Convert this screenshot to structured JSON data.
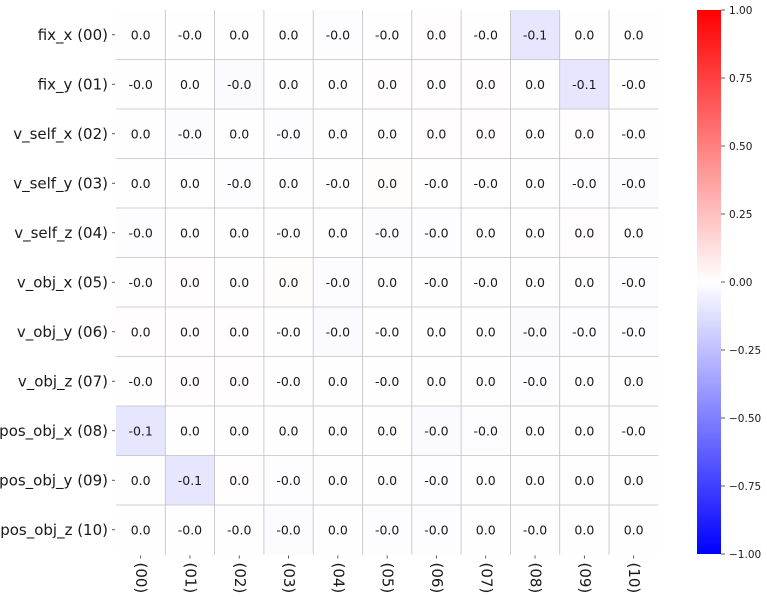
{
  "chart_data": {
    "type": "heatmap",
    "rows": [
      "fix_x (00)",
      "fix_y (01)",
      "v_self_x (02)",
      "v_self_y (03)",
      "v_self_z (04)",
      "v_obj_x (05)",
      "v_obj_y (06)",
      "v_obj_z (07)",
      "pos_obj_x (08)",
      "pos_obj_y (09)",
      "pos_obj_z (10)"
    ],
    "columns": [
      "(00)",
      "(01)",
      "(02)",
      "(03)",
      "(04)",
      "(05)",
      "(06)",
      "(07)",
      "(08)",
      "(09)",
      "(10)"
    ],
    "values": [
      [
        0.004,
        -0.005,
        0.003,
        0.004,
        -0.006,
        -0.003,
        0.007,
        -0.004,
        -0.1,
        0.005,
        0.004
      ],
      [
        -0.005,
        0.004,
        -0.015,
        0.003,
        0.004,
        0.008,
        0.006,
        0.009,
        0.004,
        -0.1,
        -0.004
      ],
      [
        0.003,
        -0.013,
        0.004,
        -0.006,
        0.003,
        0.005,
        0.006,
        0.008,
        0.005,
        0.009,
        -0.005
      ],
      [
        0.004,
        0.003,
        -0.006,
        0.004,
        -0.005,
        0.011,
        -0.004,
        -0.005,
        0.003,
        -0.006,
        -0.012
      ],
      [
        -0.006,
        0.004,
        0.003,
        -0.005,
        0.004,
        -0.012,
        -0.008,
        0.004,
        0.005,
        0.006,
        0.003
      ],
      [
        -0.003,
        0.008,
        0.005,
        0.011,
        -0.012,
        0.004,
        -0.005,
        -0.004,
        0.005,
        0.004,
        -0.006
      ],
      [
        0.007,
        0.006,
        0.006,
        -0.004,
        -0.016,
        -0.005,
        0.004,
        0.003,
        -0.016,
        -0.009,
        -0.007
      ],
      [
        -0.004,
        0.009,
        0.008,
        -0.005,
        0.004,
        -0.004,
        0.003,
        0.004,
        -0.007,
        0.004,
        0.003
      ],
      [
        -0.1,
        0.004,
        0.005,
        0.003,
        0.005,
        0.005,
        -0.016,
        -0.007,
        0.004,
        0.004,
        -0.005
      ],
      [
        0.005,
        -0.1,
        0.009,
        -0.006,
        0.004,
        0.004,
        -0.009,
        0.004,
        0.004,
        0.003,
        0.004
      ],
      [
        0.004,
        -0.004,
        -0.005,
        -0.012,
        0.003,
        -0.006,
        -0.007,
        0.003,
        -0.005,
        0.004,
        0.003
      ]
    ],
    "labels": [
      [
        "0.0",
        "-0.0",
        "0.0",
        "0.0",
        "-0.0",
        "-0.0",
        "0.0",
        "-0.0",
        "-0.1",
        "0.0",
        "0.0"
      ],
      [
        "-0.0",
        "0.0",
        "-0.0",
        "0.0",
        "0.0",
        "0.0",
        "0.0",
        "0.0",
        "0.0",
        "-0.1",
        "-0.0"
      ],
      [
        "0.0",
        "-0.0",
        "0.0",
        "-0.0",
        "0.0",
        "0.0",
        "0.0",
        "0.0",
        "0.0",
        "0.0",
        "-0.0"
      ],
      [
        "0.0",
        "0.0",
        "-0.0",
        "0.0",
        "-0.0",
        "0.0",
        "-0.0",
        "-0.0",
        "0.0",
        "-0.0",
        "-0.0"
      ],
      [
        "-0.0",
        "0.0",
        "0.0",
        "-0.0",
        "0.0",
        "-0.0",
        "-0.0",
        "0.0",
        "0.0",
        "0.0",
        "0.0"
      ],
      [
        "-0.0",
        "0.0",
        "0.0",
        "0.0",
        "-0.0",
        "0.0",
        "-0.0",
        "-0.0",
        "0.0",
        "0.0",
        "-0.0"
      ],
      [
        "0.0",
        "0.0",
        "0.0",
        "-0.0",
        "-0.0",
        "-0.0",
        "0.0",
        "0.0",
        "-0.0",
        "-0.0",
        "-0.0"
      ],
      [
        "-0.0",
        "0.0",
        "0.0",
        "-0.0",
        "0.0",
        "-0.0",
        "0.0",
        "0.0",
        "-0.0",
        "0.0",
        "0.0"
      ],
      [
        "-0.1",
        "0.0",
        "0.0",
        "0.0",
        "0.0",
        "0.0",
        "-0.0",
        "-0.0",
        "0.0",
        "0.0",
        "-0.0"
      ],
      [
        "0.0",
        "-0.1",
        "0.0",
        "-0.0",
        "0.0",
        "0.0",
        "-0.0",
        "0.0",
        "0.0",
        "0.0",
        "0.0"
      ],
      [
        "0.0",
        "-0.0",
        "-0.0",
        "-0.0",
        "0.0",
        "-0.0",
        "-0.0",
        "0.0",
        "-0.0",
        "0.0",
        "0.0"
      ]
    ],
    "colorbar": {
      "range": [
        -1.0,
        1.0
      ],
      "ticks": [
        -1.0,
        -0.75,
        -0.5,
        -0.25,
        0.0,
        0.25,
        0.5,
        0.75,
        1.0
      ],
      "tick_labels": [
        "−1.00",
        "−0.75",
        "−0.50",
        "−0.25",
        "0.00",
        "0.25",
        "0.50",
        "0.75",
        "1.00"
      ],
      "colormap": "bwr",
      "low_color": "#0000ff",
      "mid_color": "#ffffff",
      "high_color": "#ff0000"
    },
    "grid": true,
    "grid_color": "#c0c0c0"
  }
}
